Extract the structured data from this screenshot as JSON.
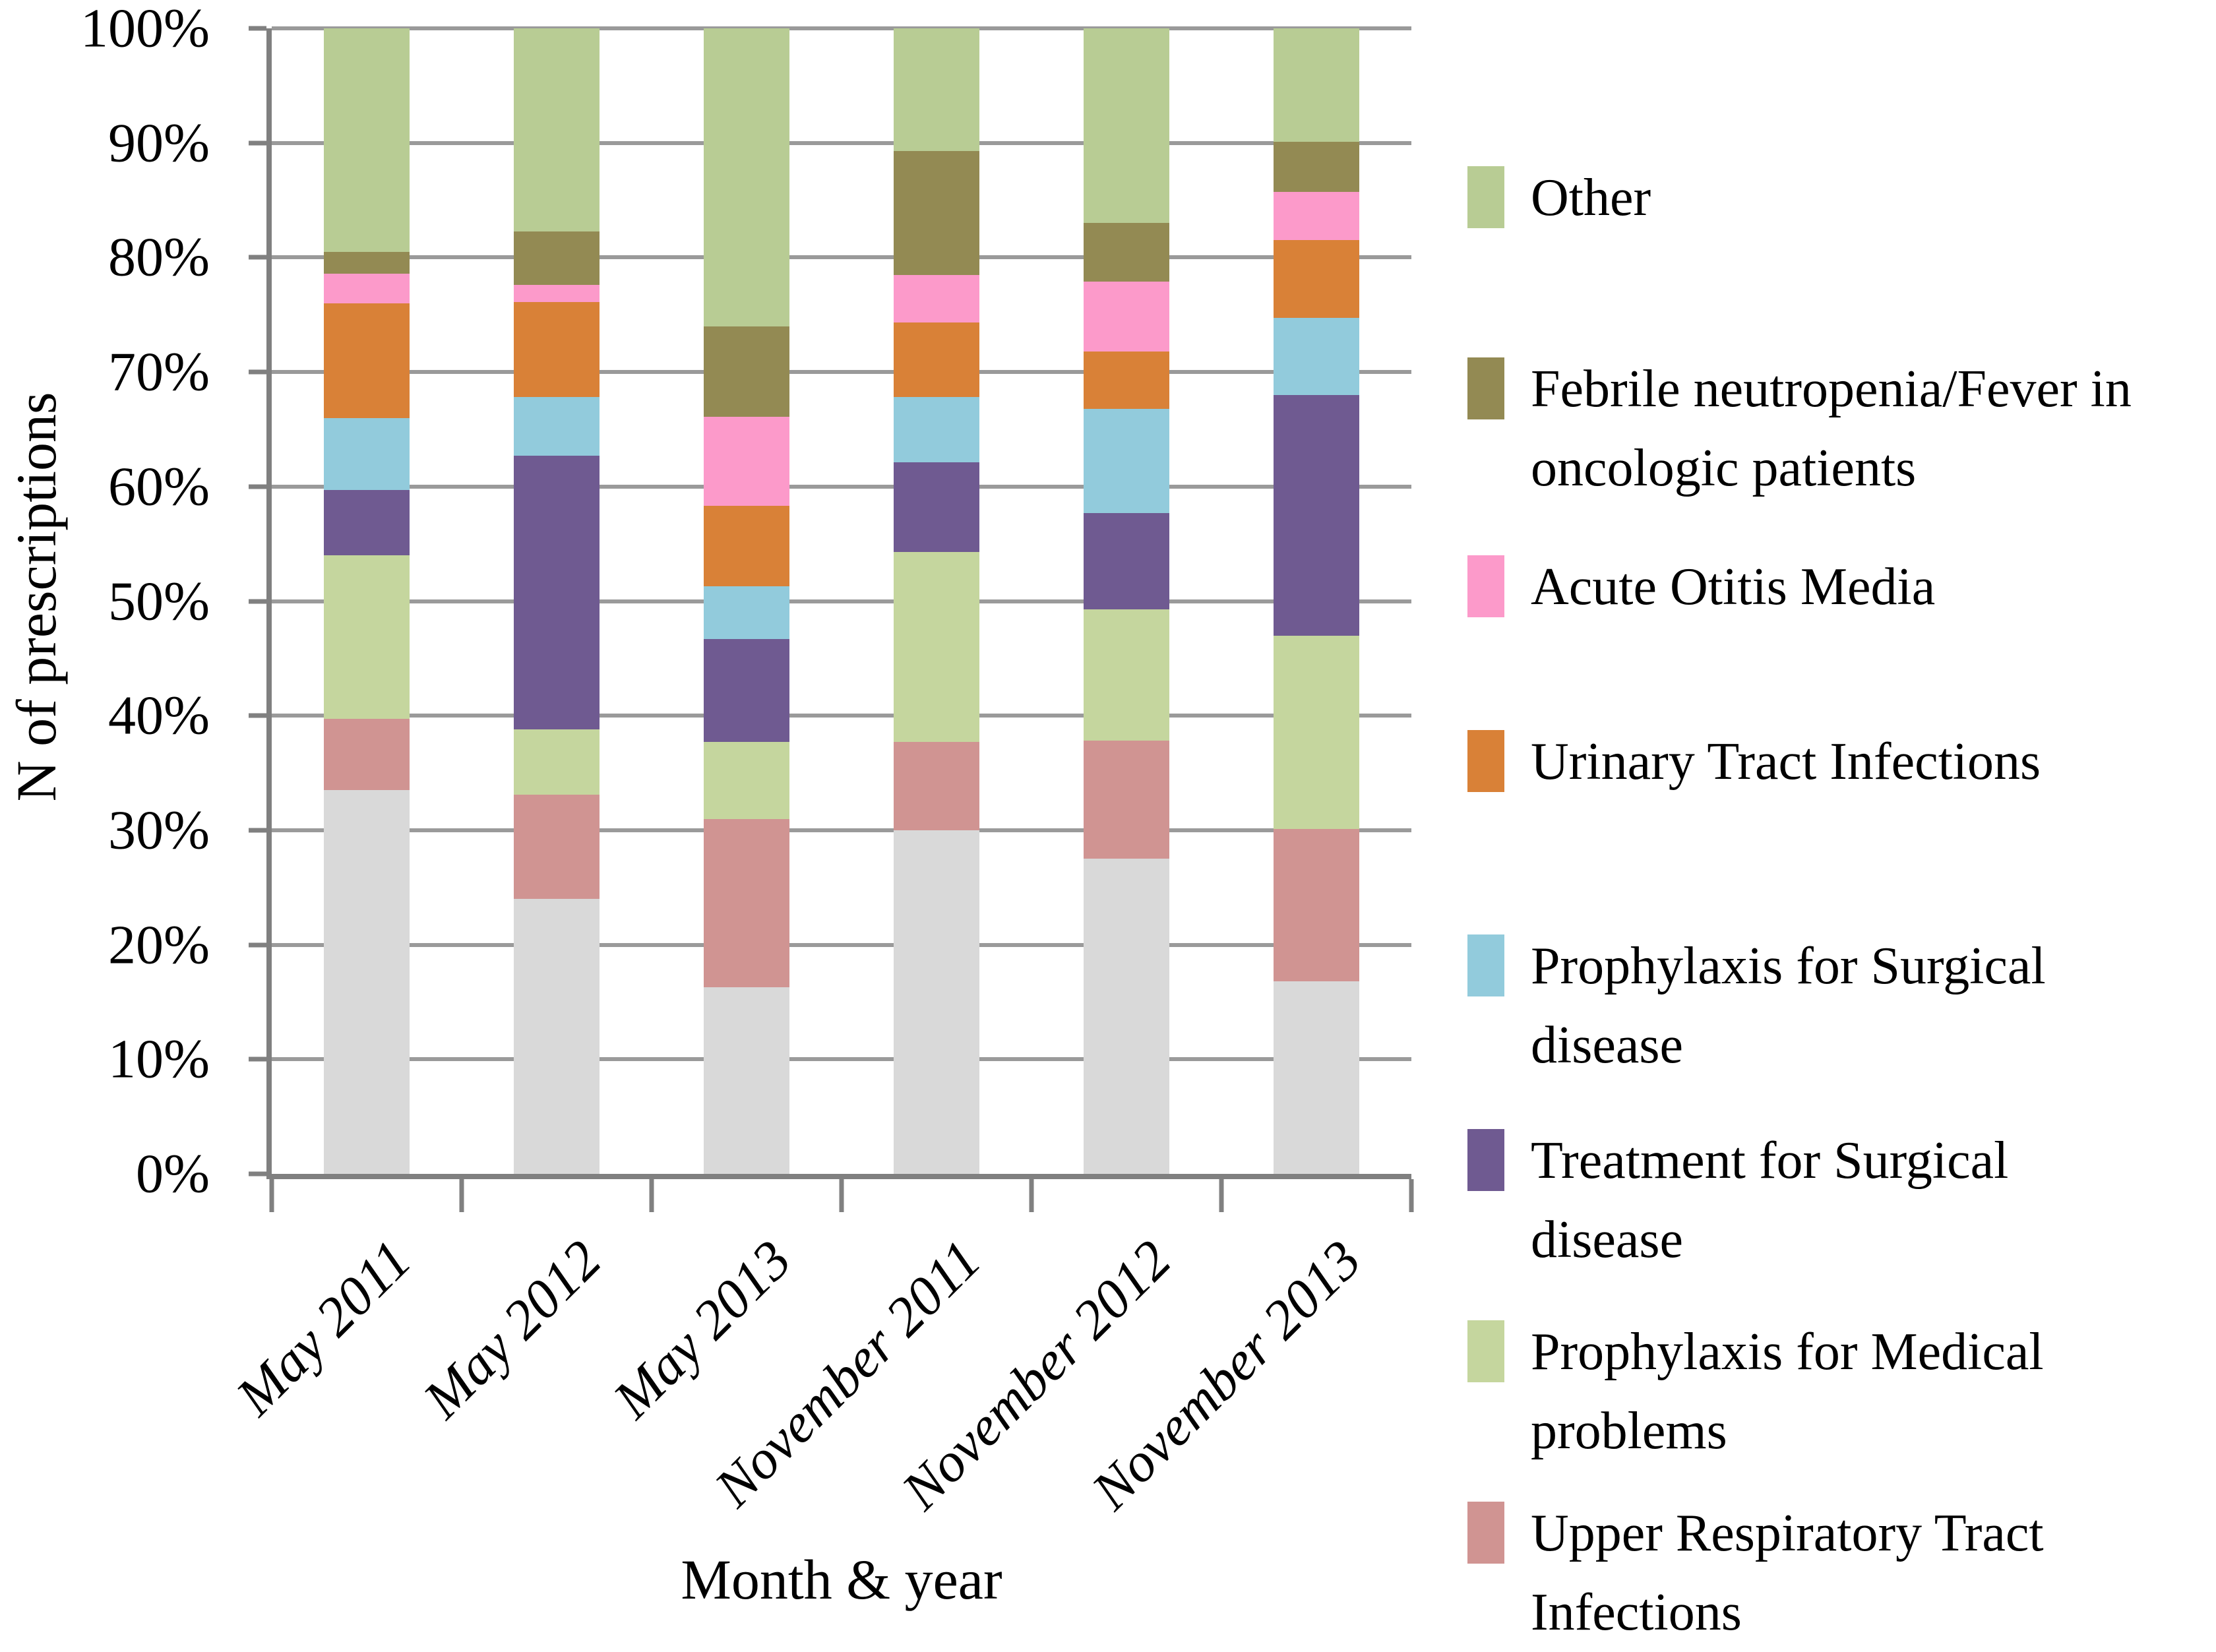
{
  "chart_data": {
    "type": "bar",
    "stacked": true,
    "percent_stacked": true,
    "title": "",
    "xlabel": "Month & year",
    "ylabel": "N of prescriptions",
    "ylim": [
      0,
      100
    ],
    "grid": "horizontal",
    "legend_position": "right",
    "y_ticks": [
      "100%",
      "90%",
      "80%",
      "70%",
      "60%",
      "50%",
      "40%",
      "30%",
      "20%",
      "10%",
      "0%"
    ],
    "categories": [
      "May 2011",
      "May 2012",
      "May 2013",
      "November 2011",
      "November 2012",
      "November 2013"
    ],
    "series_bottom_to_top": [
      {
        "name": "(unlabeled)",
        "color": "#d9d9d9",
        "in_legend": false,
        "values": [
          33.5,
          24.0,
          16.3,
          30.0,
          27.5,
          16.8
        ]
      },
      {
        "name": "Upper Respiratory Tract Infections",
        "color": "#d09492",
        "in_legend": true,
        "values": [
          6.2,
          9.1,
          14.7,
          7.7,
          10.3,
          13.3
        ]
      },
      {
        "name": "Prophylaxis for Medical problems",
        "color": "#c5d69e",
        "in_legend": true,
        "values": [
          14.3,
          5.7,
          6.7,
          16.6,
          11.5,
          16.9
        ]
      },
      {
        "name": "Treatment for Surgical disease",
        "color": "#6f5a91",
        "in_legend": true,
        "values": [
          5.7,
          23.9,
          9.0,
          7.8,
          8.4,
          21.0
        ]
      },
      {
        "name": "Prophylaxis for Surgical disease",
        "color": "#92cbdc",
        "in_legend": true,
        "values": [
          6.3,
          5.1,
          4.6,
          5.7,
          9.1,
          6.7
        ]
      },
      {
        "name": "Urinary Tract Infections",
        "color": "#d98137",
        "in_legend": true,
        "values": [
          10.0,
          8.3,
          7.0,
          6.5,
          5.0,
          6.8
        ]
      },
      {
        "name": "Acute Otitis Media",
        "color": "#fc9aca",
        "in_legend": true,
        "values": [
          2.6,
          1.5,
          7.8,
          4.2,
          6.1,
          4.2
        ]
      },
      {
        "name": "Febrile neutropenia/Fever in oncologic patients",
        "color": "#938a53",
        "in_legend": true,
        "values": [
          1.9,
          4.7,
          7.9,
          10.8,
          5.1,
          4.4
        ]
      },
      {
        "name": "Other",
        "color": "#b8cc94",
        "in_legend": true,
        "values": [
          19.5,
          17.7,
          26.0,
          10.7,
          17.0,
          9.9
        ]
      }
    ]
  },
  "legend": {
    "items": [
      {
        "label": "Other",
        "color": "#b8cc94"
      },
      {
        "label": "Febrile neutropenia/Fever in oncologic patients",
        "color": "#938a53"
      },
      {
        "label": "Acute Otitis Media",
        "color": "#fc9aca"
      },
      {
        "label": "Urinary Tract Infections",
        "color": "#d98137"
      },
      {
        "label": "Prophylaxis for Surgical disease",
        "color": "#92cbdc"
      },
      {
        "label": "Treatment for Surgical disease",
        "color": "#6f5a91"
      },
      {
        "label": "Prophylaxis for Medical problems",
        "color": "#c5d69e"
      },
      {
        "label": "Upper Respiratory Tract Infections",
        "color": "#d09492"
      }
    ]
  }
}
